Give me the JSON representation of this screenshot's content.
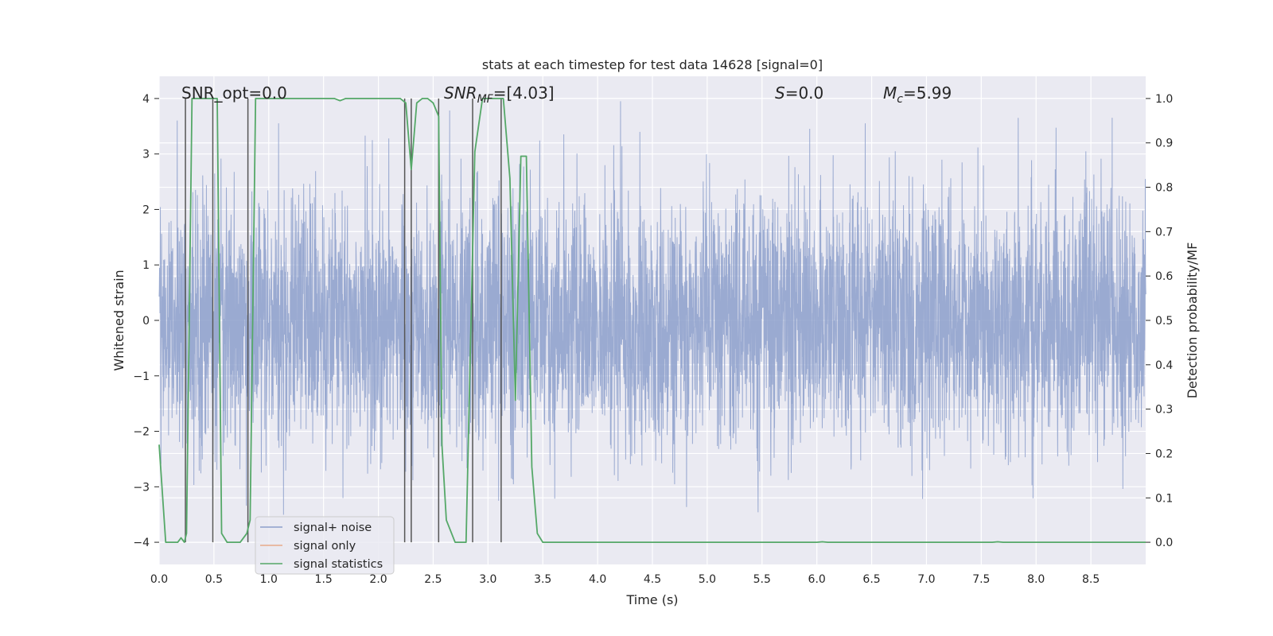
{
  "chart_data": {
    "type": "line",
    "title": "stats at each timestep for test data 14628 [signal=0]",
    "xlabel": "Time (s)",
    "ylabel_left": "Whitened strain",
    "ylabel_right": "Detection probability/MF",
    "xlim": [
      0.0,
      9.0
    ],
    "ylim_left": [
      -4.4,
      4.4
    ],
    "ylim_right": [
      -0.05,
      1.05
    ],
    "x_ticks": [
      "0.0",
      "0.5",
      "1.0",
      "1.5",
      "2.0",
      "2.5",
      "3.0",
      "3.5",
      "4.0",
      "4.5",
      "5.0",
      "5.5",
      "6.0",
      "6.5",
      "7.0",
      "7.5",
      "8.0",
      "8.5"
    ],
    "y_ticks_left": [
      "4",
      "3",
      "2",
      "1",
      "0",
      "−1",
      "−2",
      "−3",
      "−4"
    ],
    "y_ticks_right": [
      "1.0",
      "0.9",
      "0.8",
      "0.7",
      "0.6",
      "0.5",
      "0.4",
      "0.3",
      "0.2",
      "0.1",
      "0.0"
    ],
    "annotations": {
      "snr_opt": "SNR_opt=0.0",
      "snr_mf_main": "SNR",
      "snr_mf_sub": "MF",
      "snr_mf_value": "=[4.03]",
      "s_main": "S",
      "s_value": "=0.0",
      "mc_main": "M",
      "mc_sub": "c",
      "mc_value": "=5.99"
    },
    "vertical_lines_x": [
      0.24,
      0.49,
      0.81,
      2.24,
      2.3,
      2.55,
      2.86,
      3.12
    ],
    "series": [
      {
        "name": "signal+ noise",
        "color": "#8c9fcb",
        "description": "whitened strain noise, approx. amplitude range -4 to 4 over 0-9 s"
      },
      {
        "name": "signal only",
        "color": "#e8a98a",
        "values": []
      },
      {
        "name": "signal statistics",
        "color": "#55a868",
        "x": [
          0.0,
          0.06,
          0.17,
          0.2,
          0.23,
          0.25,
          0.3,
          0.33,
          0.4,
          0.45,
          0.49,
          0.53,
          0.57,
          0.62,
          0.68,
          0.74,
          0.8,
          0.83,
          0.88,
          1.0,
          1.2,
          1.4,
          1.6,
          1.65,
          1.7,
          1.8,
          2.0,
          2.2,
          2.25,
          2.3,
          2.35,
          2.4,
          2.45,
          2.5,
          2.55,
          2.58,
          2.62,
          2.7,
          2.75,
          2.8,
          2.88,
          2.95,
          3.0,
          3.1,
          3.14,
          3.2,
          3.25,
          3.3,
          3.35,
          3.4,
          3.45,
          3.5,
          4.0,
          4.5,
          5.0,
          5.5,
          6.0,
          6.05,
          6.1,
          6.5,
          7.0,
          7.5,
          7.6,
          7.65,
          7.7,
          8.0,
          8.5,
          9.0
        ],
        "values": [
          0.22,
          0.0,
          0.0,
          0.01,
          0.0,
          0.02,
          1.0,
          1.0,
          1.0,
          1.0,
          1.0,
          1.0,
          0.02,
          0.0,
          0.0,
          0.0,
          0.02,
          0.05,
          1.0,
          1.0,
          1.0,
          1.0,
          1.0,
          0.995,
          1.0,
          1.0,
          1.0,
          1.0,
          0.99,
          0.84,
          0.99,
          1.0,
          1.0,
          0.99,
          0.96,
          0.22,
          0.05,
          0.0,
          0.0,
          0.0,
          0.88,
          1.0,
          1.0,
          1.0,
          1.0,
          0.82,
          0.32,
          0.87,
          0.87,
          0.17,
          0.02,
          0.0,
          0.0,
          0.0,
          0.0,
          0.0,
          0.0,
          0.001,
          0.0,
          0.0,
          0.0,
          0.0,
          0.0,
          0.001,
          0.0,
          0.0,
          0.0,
          0.0
        ]
      }
    ],
    "legend": {
      "position": "lower-left",
      "entries": [
        "signal+ noise",
        "signal only",
        "signal statistics"
      ]
    },
    "colors": {
      "axes_bg": "#eaeaf2",
      "grid": "#ffffff",
      "vline": "#555555"
    }
  }
}
